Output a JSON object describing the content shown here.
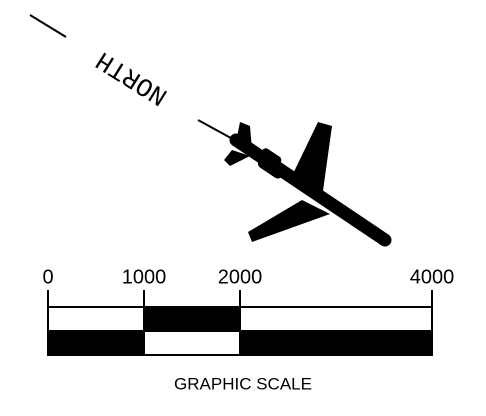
{
  "north_arrow": {
    "label": "NORTH"
  },
  "scale": {
    "ticks": [
      0,
      1000,
      2000,
      4000
    ],
    "caption": "GRAPHIC SCALE"
  }
}
